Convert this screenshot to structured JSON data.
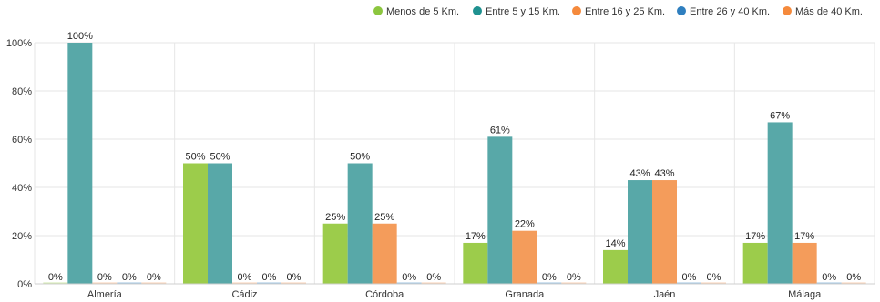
{
  "chart_data": {
    "type": "bar",
    "categories": [
      "Almería",
      "Cádiz",
      "Córdoba",
      "Granada",
      "Jaén",
      "Málaga"
    ],
    "series": [
      {
        "name": "Menos de 5 Km.",
        "color": "#9ccc4b",
        "values": [
          0,
          50,
          25,
          17,
          14,
          17
        ],
        "labels": [
          "0%",
          "50%",
          "25%",
          "17%",
          "14%",
          "17%"
        ]
      },
      {
        "name": "Entre 5 y 15 Km.",
        "color": "#58a8a8",
        "values": [
          100,
          50,
          50,
          61,
          43,
          67
        ],
        "labels": [
          "100%",
          "50%",
          "50%",
          "61%",
          "43%",
          "67%"
        ]
      },
      {
        "name": "Entre 16 y 25 Km.",
        "color": "#f49c5b",
        "values": [
          0,
          0,
          25,
          22,
          43,
          17
        ],
        "labels": [
          "0%",
          "0%",
          "25%",
          "22%",
          "43%",
          "17%"
        ]
      },
      {
        "name": "Entre 26 y 40 Km.",
        "color": "#2f7fbf",
        "values": [
          0,
          0,
          0,
          0,
          0,
          0
        ],
        "labels": [
          "0%",
          "0%",
          "0%",
          "0%",
          "0%",
          "0%"
        ]
      },
      {
        "name": "Más de 40 Km.",
        "color": "#f49c5b",
        "values": [
          0,
          0,
          0,
          0,
          0,
          0
        ],
        "labels": [
          "0%",
          "0%",
          "0%",
          "0%",
          "0%",
          "0%"
        ]
      }
    ],
    "legend_colors": [
      "#8cc63f",
      "#1f9190",
      "#f58a3c",
      "#2f7fbf",
      "#f58a3c"
    ],
    "y_ticks": [
      "0%",
      "20%",
      "40%",
      "60%",
      "80%",
      "100%"
    ],
    "ylim": [
      0,
      100
    ],
    "grid": true,
    "legend_position": "top-right"
  }
}
